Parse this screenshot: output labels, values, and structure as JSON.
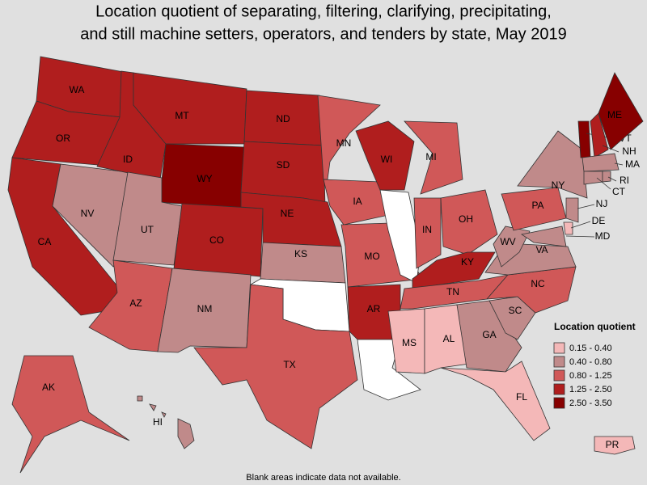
{
  "title": [
    "Location quotient of separating, filtering, clarifying, precipitating,",
    "and still machine setters, operators, and tenders by state, May 2019"
  ],
  "legend": {
    "title": "Location quotient",
    "items": [
      {
        "label": "0.15 - 0.40",
        "color": "#f4b8b8"
      },
      {
        "label": "0.40 - 0.80",
        "color": "#c08a8a"
      },
      {
        "label": "0.80 - 1.25",
        "color": "#d05858"
      },
      {
        "label": "1.25 - 2.50",
        "color": "#b01e1e"
      },
      {
        "label": "2.50 - 3.50",
        "color": "#870000"
      }
    ]
  },
  "states": [
    {
      "label": "WA",
      "color": "#b01e1e"
    },
    {
      "label": "OR",
      "color": "#b01e1e"
    },
    {
      "label": "CA",
      "color": "#b01e1e"
    },
    {
      "label": "NV",
      "color": "#c08a8a"
    },
    {
      "label": "ID",
      "color": "#b01e1e"
    },
    {
      "label": "MT",
      "color": "#b01e1e"
    },
    {
      "label": "WY",
      "color": "#870000"
    },
    {
      "label": "UT",
      "color": "#c08a8a"
    },
    {
      "label": "CO",
      "color": "#b01e1e"
    },
    {
      "label": "AZ",
      "color": "#d05858"
    },
    {
      "label": "NM",
      "color": "#c08a8a"
    },
    {
      "label": "ND",
      "color": "#b01e1e"
    },
    {
      "label": "SD",
      "color": "#b01e1e"
    },
    {
      "label": "NE",
      "color": "#b01e1e"
    },
    {
      "label": "KS",
      "color": "#c08a8a"
    },
    {
      "label": null,
      "color": "#ffffff"
    },
    {
      "label": "TX",
      "color": "#d05858"
    },
    {
      "label": "MN",
      "color": "#d05858"
    },
    {
      "label": "IA",
      "color": "#d05858"
    },
    {
      "label": "MO",
      "color": "#d05858"
    },
    {
      "label": "AR",
      "color": "#b01e1e"
    },
    {
      "label": null,
      "color": "#ffffff"
    },
    {
      "label": "WI",
      "color": "#b01e1e"
    },
    {
      "label": null,
      "color": "#ffffff"
    },
    {
      "label": "MI",
      "color": "#d05858"
    },
    {
      "label": "IN",
      "color": "#d05858"
    },
    {
      "label": "OH",
      "color": "#d05858"
    },
    {
      "label": "KY",
      "color": "#b01e1e"
    },
    {
      "label": "TN",
      "color": "#d05858"
    },
    {
      "label": "MS",
      "color": "#f4b8b8"
    },
    {
      "label": "AL",
      "color": "#f4b8b8"
    },
    {
      "label": "GA",
      "color": "#c08a8a"
    },
    {
      "label": "FL",
      "color": "#f4b8b8"
    },
    {
      "label": "SC",
      "color": "#c08a8a"
    },
    {
      "label": "NC",
      "color": "#d05858"
    },
    {
      "label": "VA",
      "color": "#c08a8a"
    },
    {
      "label": "WV",
      "color": "#c08a8a"
    },
    {
      "label": "PA",
      "color": "#d05858"
    },
    {
      "label": "NY",
      "color": "#c08a8a"
    },
    {
      "label": "NJ",
      "color": "#c08a8a"
    },
    {
      "label": "DE",
      "color": "#f4b8b8"
    },
    {
      "label": "MD",
      "color": "#c08a8a"
    },
    {
      "label": "VT",
      "color": "#870000"
    },
    {
      "label": "NH",
      "color": "#b01e1e"
    },
    {
      "label": "ME",
      "color": "#870000"
    },
    {
      "label": "MA",
      "color": "#c08a8a"
    },
    {
      "label": "CT",
      "color": "#c08a8a"
    },
    {
      "label": "RI",
      "color": "#c08a8a"
    },
    {
      "label": "AK",
      "color": "#d05858"
    },
    {
      "label": "HI",
      "color": "#c08a8a"
    },
    {
      "label": "PR",
      "color": "#f4b8b8"
    }
  ],
  "footnote": "Blank areas indicate data not available."
}
